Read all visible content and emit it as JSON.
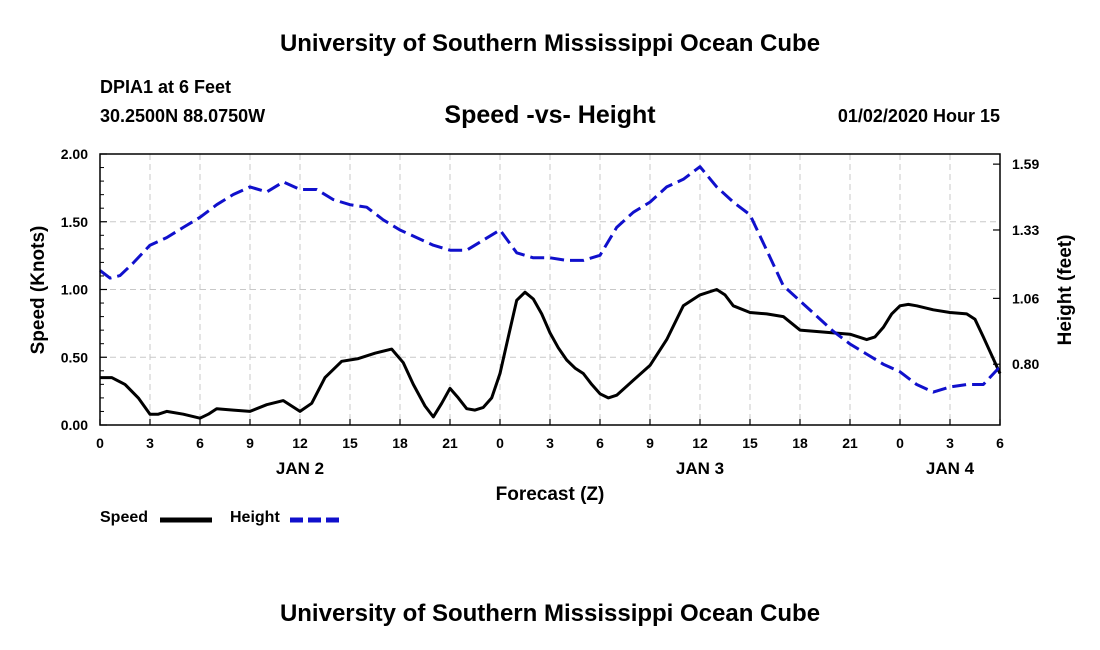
{
  "header": {
    "title": "University of Southern Mississippi Ocean Cube",
    "station": "DPIA1 at 6 Feet",
    "coords": "30.2500N 88.0750W",
    "subtitle": "Speed -vs- Height",
    "datestamp": "01/02/2020 Hour 15"
  },
  "footer": {
    "title": "University of Southern Mississippi Ocean Cube"
  },
  "chart_data": {
    "type": "line",
    "title": "Speed -vs- Height",
    "xlabel": "Forecast (Z)",
    "ylabel": "Speed (Knots)",
    "y2label": "Height (feet)",
    "xlim": [
      0,
      54
    ],
    "ylim": [
      0,
      2.0
    ],
    "y2lim": [
      0.56,
      1.63
    ],
    "grid": true,
    "x_ticks": [
      {
        "x": 0,
        "label": "0"
      },
      {
        "x": 3,
        "label": "3"
      },
      {
        "x": 6,
        "label": "6"
      },
      {
        "x": 9,
        "label": "9"
      },
      {
        "x": 12,
        "label": "12"
      },
      {
        "x": 15,
        "label": "15"
      },
      {
        "x": 18,
        "label": "18"
      },
      {
        "x": 21,
        "label": "21"
      },
      {
        "x": 24,
        "label": "0"
      },
      {
        "x": 27,
        "label": "3"
      },
      {
        "x": 30,
        "label": "6"
      },
      {
        "x": 33,
        "label": "9"
      },
      {
        "x": 36,
        "label": "12"
      },
      {
        "x": 39,
        "label": "15"
      },
      {
        "x": 42,
        "label": "18"
      },
      {
        "x": 45,
        "label": "21"
      },
      {
        "x": 48,
        "label": "0"
      },
      {
        "x": 51,
        "label": "3"
      },
      {
        "x": 54,
        "label": "6"
      }
    ],
    "day_labels": [
      {
        "x": 12,
        "label": "JAN 2"
      },
      {
        "x": 36,
        "label": "JAN 3"
      },
      {
        "x": 51,
        "label": "JAN 4"
      }
    ],
    "y_ticks": [
      {
        "v": 0,
        "label": "0.00"
      },
      {
        "v": 0.5,
        "label": "0.50"
      },
      {
        "v": 1.0,
        "label": "1.00"
      },
      {
        "v": 1.5,
        "label": "1.50"
      },
      {
        "v": 2.0,
        "label": "2.00"
      }
    ],
    "y2_ticks": [
      {
        "v": 0.8,
        "label": "0.80"
      },
      {
        "v": 1.06,
        "label": "1.06"
      },
      {
        "v": 1.33,
        "label": "1.33"
      },
      {
        "v": 1.59,
        "label": "1.59"
      }
    ],
    "legend": [
      {
        "name": "Speed",
        "color": "#000000",
        "dash": "solid"
      },
      {
        "name": "Height",
        "color": "#1010cc",
        "dash": "dashed"
      }
    ],
    "series": [
      {
        "name": "Speed",
        "axis": "left",
        "color": "#000000",
        "dash": "solid",
        "x": [
          0,
          0.7,
          1.5,
          2.3,
          3,
          3.5,
          4,
          5,
          6,
          6.5,
          7,
          8,
          9,
          10,
          11,
          12,
          12.7,
          13.5,
          14.5,
          15.5,
          16.5,
          17.5,
          18.2,
          18.8,
          19.5,
          20,
          20.5,
          21,
          21.5,
          22,
          22.5,
          23,
          23.5,
          24,
          24.5,
          25,
          25.5,
          26,
          26.5,
          27,
          27.5,
          28,
          28.5,
          29,
          29.5,
          30,
          30.5,
          31,
          32,
          33,
          34,
          35,
          36,
          37,
          37.5,
          38,
          39,
          40,
          41,
          42,
          43,
          44,
          45,
          46,
          46.5,
          47,
          47.5,
          48,
          48.5,
          49,
          50,
          51,
          52,
          52.5,
          53,
          54
        ],
        "values": [
          0.35,
          0.35,
          0.3,
          0.2,
          0.08,
          0.08,
          0.1,
          0.08,
          0.05,
          0.08,
          0.12,
          0.11,
          0.1,
          0.15,
          0.18,
          0.1,
          0.16,
          0.35,
          0.47,
          0.49,
          0.53,
          0.56,
          0.46,
          0.3,
          0.14,
          0.06,
          0.16,
          0.27,
          0.2,
          0.12,
          0.11,
          0.13,
          0.2,
          0.38,
          0.65,
          0.92,
          0.98,
          0.93,
          0.82,
          0.68,
          0.57,
          0.48,
          0.42,
          0.38,
          0.3,
          0.23,
          0.2,
          0.22,
          0.33,
          0.44,
          0.63,
          0.88,
          0.96,
          1.0,
          0.96,
          0.88,
          0.83,
          0.82,
          0.8,
          0.7,
          0.69,
          0.68,
          0.67,
          0.63,
          0.65,
          0.72,
          0.82,
          0.88,
          0.89,
          0.88,
          0.85,
          0.83,
          0.82,
          0.78,
          0.65,
          0.38
        ]
      },
      {
        "name": "Height",
        "axis": "right",
        "color": "#1010cc",
        "dash": "dashed",
        "x": [
          0,
          0.6,
          1.2,
          2,
          3,
          4,
          5,
          6,
          7,
          8,
          9,
          10,
          11,
          12,
          13,
          14,
          15,
          16,
          17,
          18,
          19,
          20,
          21,
          22,
          23,
          24,
          25,
          26,
          27,
          28,
          29,
          30,
          31,
          32,
          33,
          34,
          35,
          36,
          37,
          38,
          39,
          40,
          41,
          42,
          43,
          44,
          45,
          46,
          47,
          48,
          49,
          50,
          51,
          52,
          53,
          54
        ],
        "values": [
          1.17,
          1.14,
          1.15,
          1.2,
          1.27,
          1.3,
          1.34,
          1.38,
          1.43,
          1.47,
          1.5,
          1.48,
          1.52,
          1.49,
          1.49,
          1.45,
          1.43,
          1.42,
          1.37,
          1.33,
          1.3,
          1.27,
          1.25,
          1.25,
          1.29,
          1.33,
          1.24,
          1.22,
          1.22,
          1.21,
          1.21,
          1.23,
          1.34,
          1.4,
          1.44,
          1.5,
          1.53,
          1.58,
          1.5,
          1.44,
          1.39,
          1.25,
          1.11,
          1.05,
          0.99,
          0.93,
          0.88,
          0.84,
          0.8,
          0.77,
          0.72,
          0.69,
          0.71,
          0.72,
          0.72,
          0.79
        ]
      }
    ]
  }
}
